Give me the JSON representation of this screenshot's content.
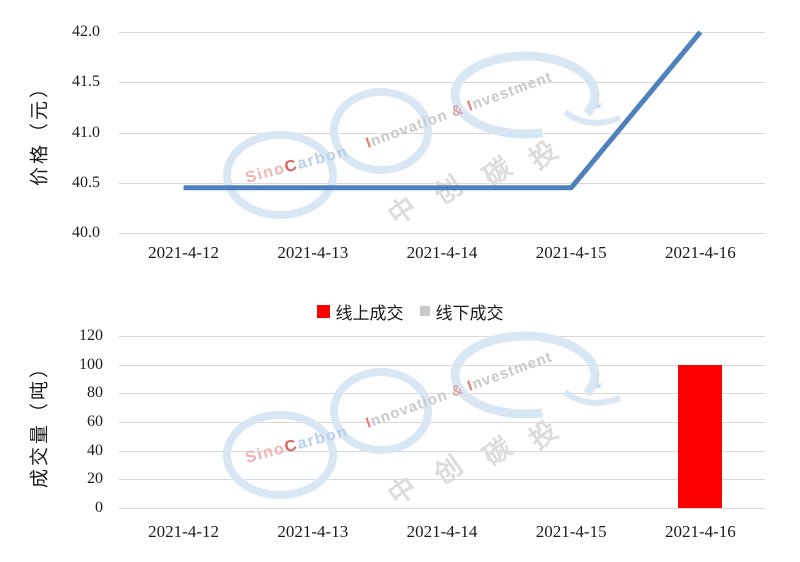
{
  "watermark": {
    "sino": {
      "pre": "Sino",
      "c": "C",
      "post": "arbon"
    },
    "inno": {
      "i1": "I",
      "w1": "nnovation",
      "amp": " & ",
      "i2": "I",
      "w2": "nvestment"
    },
    "cn": [
      "中",
      "创",
      "碳",
      "投"
    ],
    "sparkle": "✳",
    "colors": {
      "ring": "#d9e7f5",
      "pink": "#f1b3b3",
      "red": "#e25d5d",
      "light_blue": "#b9cfe8",
      "gray": "#c9c9c9"
    }
  },
  "chart_data": [
    {
      "type": "line",
      "title": "",
      "categories": [
        "2021-4-12",
        "2021-4-13",
        "2021-4-14",
        "2021-4-15",
        "2021-4-16"
      ],
      "series": [
        {
          "name": "价格",
          "values": [
            40.45,
            40.45,
            40.45,
            40.45,
            42.0
          ],
          "color": "#4F81BD"
        }
      ],
      "xlabel": "",
      "ylabel": "价格（元）",
      "ylim": [
        40.0,
        42.0
      ],
      "yticks": [
        "42.0",
        "41.5",
        "41.0",
        "40.5",
        "40.0"
      ],
      "grid": true,
      "legend": "none"
    },
    {
      "type": "bar",
      "title": "",
      "categories": [
        "2021-4-12",
        "2021-4-13",
        "2021-4-14",
        "2021-4-15",
        "2021-4-16"
      ],
      "series": [
        {
          "name": "线上成交",
          "values": [
            0,
            0,
            0,
            0,
            100
          ],
          "color": "#FF0000"
        },
        {
          "name": "线下成交",
          "values": [
            0,
            0,
            0,
            0,
            0
          ],
          "color": "#C8C8C8"
        }
      ],
      "xlabel": "",
      "ylabel": "成交量（吨）",
      "ylim": [
        0,
        120
      ],
      "yticks": [
        "120",
        "100",
        "80",
        "60",
        "40",
        "20",
        "0"
      ],
      "grid": true,
      "legend": "top"
    }
  ]
}
